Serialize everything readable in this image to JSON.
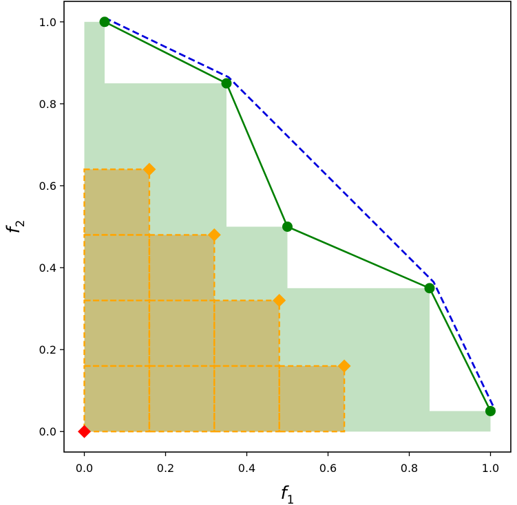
{
  "chart_data": {
    "type": "scatter",
    "xlabel": "f",
    "xlabel_sub": "1",
    "ylabel": "f",
    "ylabel_sub": "2",
    "xlim": [
      -0.05,
      1.05
    ],
    "ylim": [
      -0.05,
      1.05
    ],
    "xticks": [
      0.0,
      0.2,
      0.4,
      0.6,
      0.8,
      1.0
    ],
    "xtick_labels": [
      "0.0",
      "0.2",
      "0.4",
      "0.6",
      "0.8",
      "1.0"
    ],
    "yticks": [
      0.0,
      0.2,
      0.4,
      0.6,
      0.8,
      1.0
    ],
    "ytick_labels": [
      "0.0",
      "0.2",
      "0.4",
      "0.6",
      "0.8",
      "1.0"
    ],
    "grid": false,
    "reference_point": {
      "x": 0.0,
      "y": 0.0,
      "color": "#ff0000",
      "marker": "diamond"
    },
    "pareto_points": {
      "color": "#008000",
      "x": [
        0.05,
        0.35,
        0.5,
        0.85,
        1.0
      ],
      "y": [
        1.0,
        0.85,
        0.5,
        0.35,
        0.05
      ]
    },
    "dominated_region": {
      "color": "#c2e1c2"
    },
    "upper_bound": {
      "color": "#0000dd",
      "style": "dashed",
      "x": [
        0.05,
        0.355,
        0.86,
        1.01
      ],
      "y": [
        1.01,
        0.865,
        0.365,
        0.055
      ]
    },
    "orange_points": {
      "color": "#ffa500",
      "x": [
        0.16,
        0.32,
        0.48,
        0.64
      ],
      "y": [
        0.64,
        0.48,
        0.32,
        0.16
      ]
    },
    "orange_region": {
      "fill": "#c8bf7d",
      "edge": "#ffa500",
      "style": "dashed"
    }
  }
}
